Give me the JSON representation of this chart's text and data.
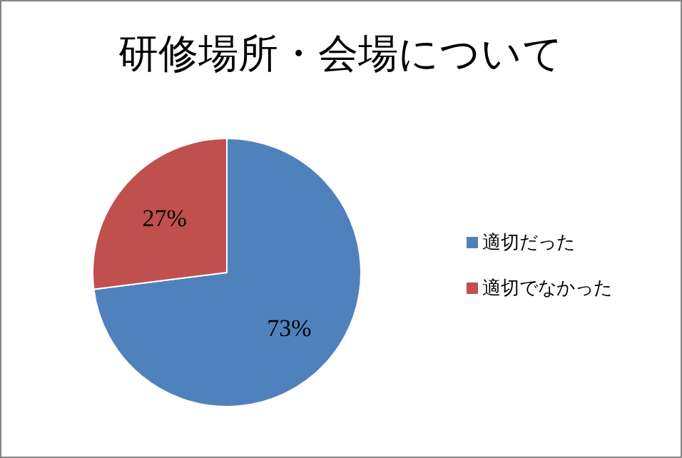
{
  "chart_data": {
    "type": "pie",
    "title": "研修場所・会場について",
    "categories": [
      "適切だった",
      "適切でなかった"
    ],
    "values": [
      73,
      27
    ],
    "colors": [
      "#4f81bd",
      "#c0504d"
    ],
    "value_labels": [
      "73%",
      "27%"
    ],
    "legend": "right"
  }
}
